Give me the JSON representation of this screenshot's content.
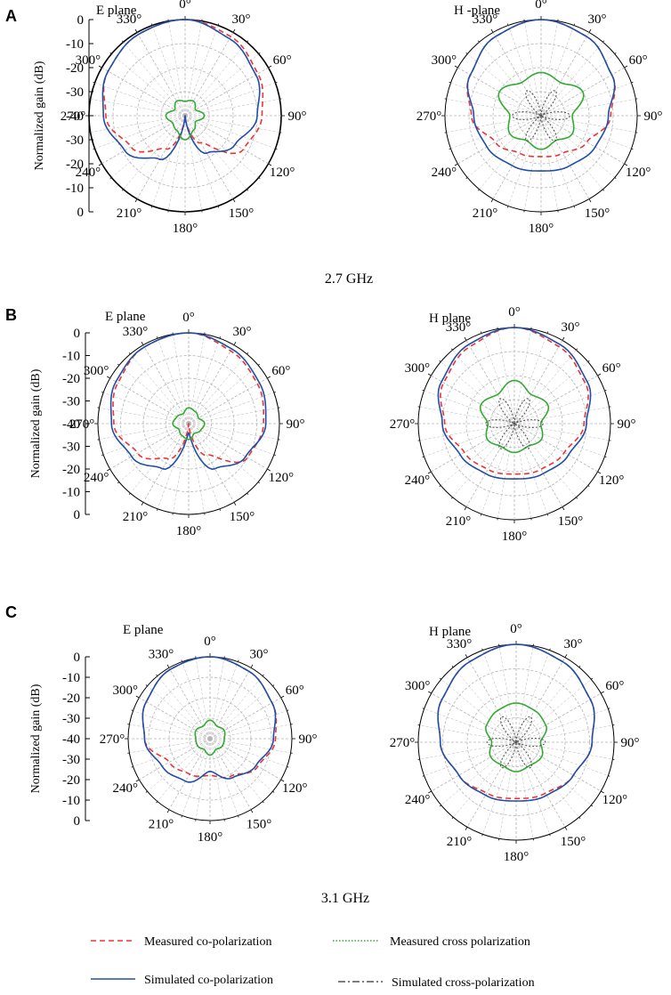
{
  "figure": {
    "captions": {
      "row_a": "2.7 GHz",
      "row_c": "3.1 GHz"
    },
    "panel_letters": [
      "A",
      "B",
      "C"
    ],
    "colors": {
      "measured_co": "#ee3333",
      "simulated_co": "#1f4fa8",
      "measured_cross": "#33aa33",
      "simulated_cross": "#555555",
      "grid": "#b5b5b5",
      "axis": "#000000"
    },
    "legend": [
      {
        "label": "Measured co-polarization",
        "style": "measured_co"
      },
      {
        "label": "Measured cross polarization",
        "style": "measured_cross"
      },
      {
        "label": "Simulated co-polarization",
        "style": "simulated_co"
      },
      {
        "label": "Simulated cross-polarization",
        "style": "simulated_cross"
      }
    ]
  },
  "chart_data": [
    {
      "type": "polar",
      "panel": "A",
      "title": "E plane",
      "frequency": "2.7 GHz",
      "ylabel": "Normalized gain (dB)",
      "r_range_db": [
        -40,
        0
      ],
      "outer_ring": true,
      "angle_labels": [
        "0°",
        "30°",
        "60°",
        "90°",
        "120°",
        "150°",
        "180°",
        "210°",
        "240°",
        "270°",
        "300°",
        "330°"
      ],
      "r_tick_labels": [
        "0",
        "-10",
        "-20",
        "-30",
        "-40",
        "-30",
        "-20",
        "-10",
        "0"
      ],
      "angles_deg": [
        0,
        30,
        60,
        90,
        120,
        150,
        180,
        210,
        240,
        270,
        300,
        330
      ],
      "series": [
        {
          "name": "Measured co-polarization",
          "values": [
            0,
            -2,
            -5,
            -8,
            -12,
            -27,
            -40,
            -24,
            -14,
            -7,
            -3,
            -1
          ]
        },
        {
          "name": "Simulated co-polarization",
          "values": [
            0,
            -3,
            -6,
            -10,
            -16,
            -22,
            -40,
            -19,
            -11,
            -6,
            -3,
            -1
          ]
        },
        {
          "name": "Measured cross polarization",
          "values": [
            -34,
            -33,
            -35,
            -32,
            -35,
            -33,
            -30,
            -33,
            -34,
            -32,
            -35,
            -33
          ]
        }
      ]
    },
    {
      "type": "polar",
      "panel": "A",
      "title": "H -plane",
      "frequency": "2.7 GHz",
      "r_range_db": [
        -40,
        0
      ],
      "outer_ring": false,
      "angle_labels": [
        "0°",
        "30°",
        "60°",
        "90°",
        "120°",
        "150°",
        "180°",
        "210°",
        "240°",
        "270°",
        "300°",
        "330°"
      ],
      "angles_deg": [
        0,
        30,
        60,
        90,
        120,
        150,
        180,
        210,
        240,
        270,
        300,
        330
      ],
      "series": [
        {
          "name": "Measured co-polarization",
          "values": [
            0,
            -2,
            -6,
            -11,
            -18,
            -22,
            -23,
            -22,
            -18,
            -11,
            -6,
            -2
          ]
        },
        {
          "name": "Simulated co-polarization",
          "values": [
            0,
            -2,
            -6,
            -12,
            -14,
            -16,
            -17,
            -16,
            -14,
            -12,
            -6,
            -2
          ]
        },
        {
          "name": "Measured cross polarization",
          "values": [
            -22,
            -24,
            -20,
            -27,
            -25,
            -28,
            -26,
            -28,
            -25,
            -27,
            -20,
            -24
          ]
        },
        {
          "name": "Simulated cross-polarization",
          "values": [
            -40,
            -28,
            -40,
            -28,
            -40,
            -28,
            -40,
            -28,
            -40,
            -28,
            -40,
            -28
          ]
        }
      ]
    },
    {
      "type": "polar",
      "panel": "B",
      "title": "E plane",
      "frequency": "",
      "ylabel": "Normalized gain (dB)",
      "r_range_db": [
        -40,
        0
      ],
      "outer_ring": false,
      "angle_labels": [
        "0°",
        "30°",
        "60°",
        "90°",
        "120°",
        "150°",
        "180°",
        "210°",
        "240°",
        "270°",
        "300°",
        "330°"
      ],
      "r_tick_labels": [
        "0",
        "-10",
        "-20",
        "-30",
        "-40",
        "-30",
        "-20",
        "-10",
        "0"
      ],
      "angles_deg": [
        0,
        30,
        60,
        90,
        120,
        150,
        180,
        210,
        240,
        270,
        300,
        330
      ],
      "series": [
        {
          "name": "Measured co-polarization",
          "values": [
            0,
            -3,
            -5,
            -7,
            -10,
            -24,
            -40,
            -22,
            -14,
            -7,
            -4,
            -1
          ]
        },
        {
          "name": "Simulated co-polarization",
          "values": [
            0,
            -2,
            -4,
            -6,
            -11,
            -17,
            -36,
            -17,
            -11,
            -6,
            -3,
            -1
          ]
        },
        {
          "name": "Measured cross polarization",
          "values": [
            -33,
            -34,
            -35,
            -33,
            -34,
            -35,
            -33,
            -34,
            -35,
            -33,
            -34,
            -35
          ]
        }
      ]
    },
    {
      "type": "polar",
      "panel": "B",
      "title": "H plane",
      "frequency": "",
      "r_range_db": [
        -40,
        0
      ],
      "outer_ring": false,
      "angle_labels": [
        "0°",
        "30°",
        "60°",
        "90°",
        "120°",
        "150°",
        "180°",
        "210°",
        "240°",
        "270°",
        "300°",
        "330°"
      ],
      "angles_deg": [
        0,
        30,
        60,
        90,
        120,
        150,
        180,
        210,
        240,
        270,
        300,
        330
      ],
      "series": [
        {
          "name": "Measured co-polarization",
          "values": [
            0,
            -3,
            -6,
            -11,
            -16,
            -18,
            -19,
            -18,
            -16,
            -11,
            -6,
            -3
          ]
        },
        {
          "name": "Simulated co-polarization",
          "values": [
            0,
            -2,
            -5,
            -10,
            -14,
            -16,
            -17,
            -16,
            -14,
            -10,
            -5,
            -2
          ]
        },
        {
          "name": "Measured cross polarization",
          "values": [
            -22,
            -26,
            -24,
            -29,
            -27,
            -29,
            -28,
            -29,
            -27,
            -29,
            -24,
            -26
          ]
        },
        {
          "name": "Simulated cross-polarization",
          "values": [
            -40,
            -28,
            -40,
            -28,
            -40,
            -28,
            -40,
            -28,
            -40,
            -28,
            -40,
            -28
          ]
        }
      ]
    },
    {
      "type": "polar",
      "panel": "C",
      "title": "E plane",
      "frequency": "3.1 GHz",
      "ylabel": "Normalized gain (dB)",
      "r_range_db": [
        -40,
        0
      ],
      "outer_ring": false,
      "angle_labels": [
        "0°",
        "30°",
        "60°",
        "90°",
        "120°",
        "150°",
        "180°",
        "210°",
        "240°",
        "270°",
        "300°",
        "330°"
      ],
      "r_tick_labels": [
        "0",
        "-10",
        "-20",
        "-30",
        "-40",
        "-30",
        "-20",
        "-10",
        "0"
      ],
      "angles_deg": [
        0,
        30,
        60,
        90,
        120,
        150,
        180,
        210,
        240,
        270,
        300,
        330
      ],
      "series": [
        {
          "name": "Measured co-polarization",
          "values": [
            0,
            -2,
            -5,
            -8,
            -13,
            -19,
            -22,
            -20,
            -17,
            -8,
            -4,
            -1
          ]
        },
        {
          "name": "Simulated co-polarization",
          "values": [
            0,
            -2,
            -5,
            -9,
            -14,
            -18,
            -24,
            -16,
            -13,
            -8,
            -4,
            -1
          ]
        },
        {
          "name": "Measured cross polarization",
          "values": [
            -31,
            -33,
            -32,
            -33,
            -33,
            -34,
            -32,
            -34,
            -33,
            -33,
            -32,
            -33
          ]
        }
      ]
    },
    {
      "type": "polar",
      "panel": "C",
      "title": "H plane",
      "frequency": "3.1 GHz",
      "r_range_db": [
        -40,
        0
      ],
      "outer_ring": false,
      "angle_labels": [
        "0°",
        "30°",
        "60°",
        "90°",
        "120°",
        "150°",
        "180°",
        "210°",
        "240°",
        "270°",
        "300°",
        "330°"
      ],
      "angles_deg": [
        0,
        30,
        60,
        90,
        120,
        150,
        180,
        210,
        240,
        270,
        300,
        330
      ],
      "series": [
        {
          "name": "Measured co-polarization",
          "values": [
            0,
            -2,
            -5,
            -9,
            -13,
            -16,
            -17,
            -16,
            -13,
            -9,
            -5,
            -2
          ]
        },
        {
          "name": "Simulated co-polarization",
          "values": [
            0,
            -2,
            -5,
            -9,
            -13,
            -15,
            -16,
            -15,
            -13,
            -9,
            -5,
            -2
          ]
        },
        {
          "name": "Measured cross polarization",
          "values": [
            -24,
            -25,
            -26,
            -30,
            -28,
            -29,
            -28,
            -29,
            -28,
            -30,
            -26,
            -25
          ]
        },
        {
          "name": "Simulated cross-polarization",
          "values": [
            -40,
            -28,
            -40,
            -28,
            -40,
            -28,
            -40,
            -28,
            -40,
            -28,
            -40,
            -28
          ]
        }
      ]
    }
  ]
}
